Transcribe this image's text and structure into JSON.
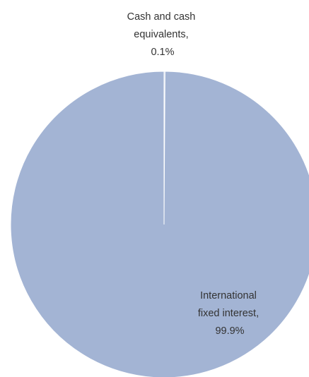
{
  "chart_data": {
    "type": "pie",
    "title": "",
    "slices": [
      {
        "name": "Cash and cash equivalents",
        "value": 0.1,
        "label_lines": [
          "Cash and cash",
          "equivalents,",
          "0.1%"
        ]
      },
      {
        "name": "International fixed interest",
        "value": 99.9,
        "label_lines": [
          "International",
          "fixed interest,",
          "99.9%"
        ]
      }
    ],
    "legend": "none",
    "colors": {
      "slice_fill": "#a3b4d4",
      "slice_border": "#ffffff",
      "label_text": "#333333"
    }
  }
}
